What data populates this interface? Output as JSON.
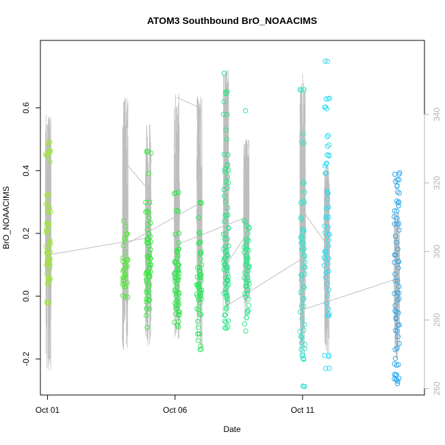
{
  "chart_data": {
    "type": "scatter",
    "title": "ATOM3 Southbound BrO_NOAACIMS",
    "xlabel": "Date",
    "ylabel": "BrO_NOAACIMS",
    "x_unit": "day of October 2017",
    "xlim": [
      0.72,
      15.78
    ],
    "ylim": [
      -0.315,
      0.815
    ],
    "y2lim": [
      258.1,
      361.6
    ],
    "x_ticks": [
      {
        "value": 1,
        "label": "Oct 01"
      },
      {
        "value": 6,
        "label": "Oct 06"
      },
      {
        "value": 11,
        "label": "Oct 11"
      }
    ],
    "y_ticks": [
      -0.2,
      0.0,
      0.2,
      0.4,
      0.6
    ],
    "y_tick_labels": [
      "-0.2",
      "0.0",
      "0.2",
      "0.4",
      "0.6"
    ],
    "y2_ticks": [
      260,
      280,
      300,
      320,
      340
    ],
    "y2_tick_labels": [
      "260",
      "280",
      "300",
      "320",
      "340"
    ],
    "grid": false,
    "legend": "none",
    "marker": "open-circle",
    "series_color_note": "points colored by time along a green-to-blue gradient",
    "gray_line_color": "#bebebe",
    "flights": [
      {
        "x": 1.03,
        "color": "#9ee82c",
        "y": [
          0.49,
          0.46,
          0.45,
          0.43,
          0.32,
          0.3,
          0.29,
          0.28,
          0.27,
          0.23,
          0.22,
          0.21,
          0.2,
          0.18,
          0.17,
          0.16,
          0.15,
          0.14,
          0.13,
          0.12,
          0.11,
          0.1,
          0.09,
          0.07,
          0.06,
          0.05,
          0.04,
          -0.02
        ],
        "alt_range": [
          265,
          340
        ]
      },
      {
        "x": 4.05,
        "color": "#55e93b",
        "y": [
          0.24,
          0.22,
          0.2,
          0.18,
          0.16,
          0.14,
          0.12,
          0.11,
          0.1,
          0.09,
          0.08,
          0.07,
          0.06,
          0.05,
          0.04,
          0.03,
          0.0
        ],
        "alt_range": [
          270,
          345
        ]
      },
      {
        "x": 4.95,
        "color": "#33ea3c",
        "y": [
          0.46,
          0.39,
          0.3,
          0.27,
          0.25,
          0.23,
          0.21,
          0.2,
          0.19,
          0.18,
          0.17,
          0.16,
          0.15,
          0.14,
          0.13,
          0.12,
          0.11,
          0.1,
          0.09,
          0.08,
          0.07,
          0.06,
          0.05,
          0.04,
          0.03,
          0.02,
          0.01,
          0.0,
          -0.01,
          -0.02,
          -0.04,
          -0.06,
          -0.1
        ],
        "alt_range": [
          272,
          337
        ]
      },
      {
        "x": 6.07,
        "color": "#2ee84a",
        "y": [
          0.33,
          0.27,
          0.2,
          0.17,
          0.15,
          0.14,
          0.13,
          0.12,
          0.11,
          0.1,
          0.09,
          0.08,
          0.07,
          0.06,
          0.05,
          0.04,
          0.03,
          0.02,
          0.01,
          0.0,
          -0.01,
          -0.02,
          -0.03,
          -0.04,
          -0.05,
          -0.06,
          -0.08,
          -0.09,
          -0.1
        ],
        "alt_range": [
          274,
          346
        ]
      },
      {
        "x": 6.95,
        "color": "#2ee65a",
        "y": [
          0.3,
          0.25,
          0.2,
          0.17,
          0.14,
          0.12,
          0.1,
          0.09,
          0.08,
          0.07,
          0.06,
          0.05,
          0.04,
          0.03,
          0.02,
          0.01,
          0.0,
          -0.01,
          -0.02,
          -0.04,
          -0.06,
          -0.08,
          -0.1,
          -0.12,
          -0.14,
          -0.16,
          -0.17
        ],
        "alt_range": [
          272,
          346
        ]
      },
      {
        "x": 8.0,
        "color": "#29e685",
        "y": [
          0.71,
          0.65,
          0.62,
          0.58,
          0.53,
          0.5,
          0.45,
          0.42,
          0.4,
          0.38,
          0.36,
          0.34,
          0.32,
          0.3,
          0.28,
          0.26,
          0.24,
          0.22,
          0.2,
          0.18,
          0.16,
          0.15,
          0.14,
          0.13,
          0.12,
          0.11,
          0.1,
          0.09,
          0.08,
          0.07,
          0.06,
          0.05,
          0.04,
          0.03,
          0.02,
          0.01,
          0.0,
          -0.01,
          -0.02,
          -0.04,
          -0.06,
          -0.08,
          -0.1
        ],
        "alt_range": [
          281,
          353
        ]
      },
      {
        "x": 8.8,
        "color": "#2ee68a",
        "y": [
          0.59,
          0.24,
          0.22,
          0.2,
          0.18,
          0.16,
          0.15,
          0.14,
          0.13,
          0.12,
          0.11,
          0.1,
          0.09,
          0.08,
          0.07,
          0.06,
          0.05,
          0.04,
          0.03,
          0.02,
          0.01,
          0.0,
          -0.01,
          -0.03,
          -0.05,
          -0.07,
          -0.09,
          -0.11
        ],
        "alt_range": [
          280,
          333
        ]
      },
      {
        "x": 11.0,
        "color": "#2fe6ce",
        "y": [
          0.66,
          0.52,
          0.49,
          0.36,
          0.33,
          0.3,
          0.25,
          0.21,
          0.19,
          0.17,
          0.15,
          0.13,
          0.11,
          0.09,
          0.07,
          0.05,
          0.03,
          0.01,
          -0.01,
          -0.03,
          -0.05,
          -0.07,
          -0.09,
          -0.11,
          -0.13,
          -0.15,
          -0.17,
          -0.19,
          -0.2,
          -0.29
        ],
        "alt_range": [
          268,
          352
        ]
      },
      {
        "x": 11.95,
        "color": "#2cdcf0",
        "y": [
          0.75,
          0.63,
          0.6,
          0.51,
          0.48,
          0.45,
          0.42,
          0.39,
          0.33,
          0.31,
          0.28,
          0.25,
          0.22,
          0.2,
          0.18,
          0.16,
          0.14,
          0.12,
          0.1,
          0.08,
          0.06,
          0.04,
          0.02,
          0.0,
          -0.02,
          -0.04,
          -0.06,
          -0.19,
          -0.23
        ],
        "alt_range": [
          270,
          325
        ]
      },
      {
        "x": 14.7,
        "color": "#2ba6ec",
        "y": [
          0.39,
          0.37,
          0.35,
          0.33,
          0.3,
          0.29,
          0.27,
          0.25,
          0.23,
          0.21,
          0.19,
          0.17,
          0.15,
          0.13,
          0.11,
          0.09,
          0.07,
          0.05,
          0.03,
          0.01,
          -0.01,
          -0.03,
          -0.05,
          -0.07,
          -0.09,
          -0.11,
          -0.13,
          -0.15,
          -0.17,
          -0.2,
          -0.22,
          -0.25,
          -0.26,
          -0.27,
          -0.28
        ],
        "alt_range": [
          268,
          312
        ]
      }
    ],
    "flight_connectors": [
      {
        "from": [
          1.03,
          299
        ],
        "to": [
          4.95,
          304
        ]
      },
      {
        "from": [
          4.05,
          326
        ],
        "to": [
          4.95,
          318
        ]
      },
      {
        "from": [
          4.05,
          302
        ],
        "to": [
          6.95,
          314
        ]
      },
      {
        "from": [
          6.07,
          345
        ],
        "to": [
          6.95,
          342
        ]
      },
      {
        "from": [
          6.07,
          302
        ],
        "to": [
          8.8,
          310
        ]
      },
      {
        "from": [
          8.0,
          296
        ],
        "to": [
          8.8,
          305
        ]
      },
      {
        "from": [
          8.0,
          284
        ],
        "to": [
          11.0,
          298
        ]
      },
      {
        "from": [
          11.0,
          283
        ],
        "to": [
          14.7,
          292
        ]
      },
      {
        "from": [
          11.0,
          312
        ],
        "to": [
          11.95,
          302
        ]
      }
    ]
  }
}
